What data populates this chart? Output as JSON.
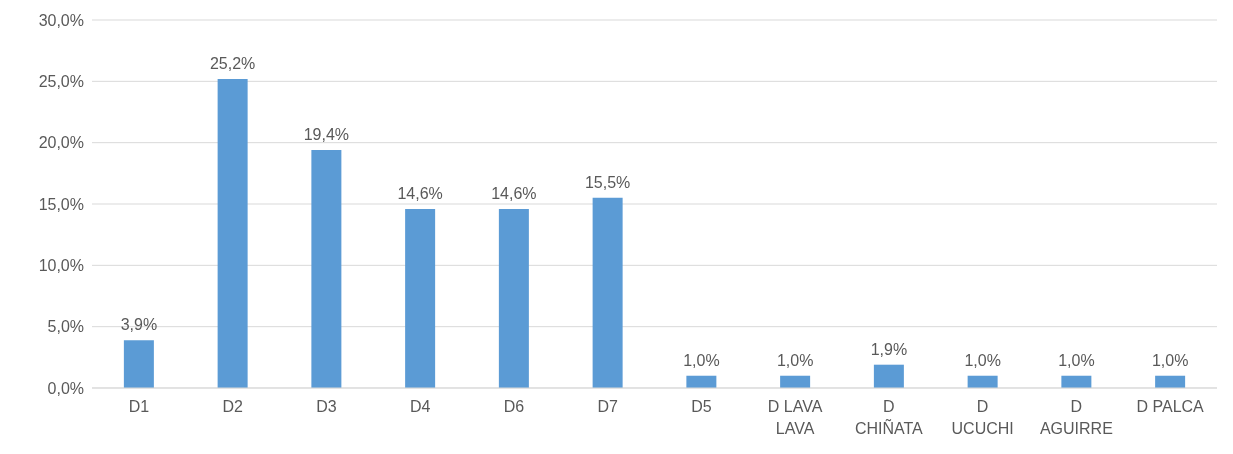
{
  "chart_data": {
    "type": "bar",
    "categories": [
      "D1",
      "D2",
      "D3",
      "D4",
      "D6",
      "D7",
      "D5",
      "D LAVA LAVA",
      "D CHIÑATA",
      "D UCUCHI",
      "D AGUIRRE",
      "D PALCA"
    ],
    "values": [
      3.9,
      25.2,
      19.4,
      14.6,
      14.6,
      15.5,
      1.0,
      1.0,
      1.9,
      1.0,
      1.0,
      1.0
    ],
    "value_labels": [
      "3,9%",
      "25,2%",
      "19,4%",
      "14,6%",
      "14,6%",
      "15,5%",
      "1,0%",
      "1,0%",
      "1,9%",
      "1,0%",
      "1,0%",
      "1,0%"
    ],
    "color": "#5b9bd5",
    "ylim": [
      0,
      30
    ],
    "yticks": [
      {
        "value": 0,
        "label": "0,0%"
      },
      {
        "value": 5,
        "label": "5,0%"
      },
      {
        "value": 10,
        "label": "10,0%"
      },
      {
        "value": 15,
        "label": "15,0%"
      },
      {
        "value": 20,
        "label": "20,0%"
      },
      {
        "value": 25,
        "label": "25,0%"
      },
      {
        "value": 30,
        "label": "30,0%"
      }
    ],
    "grid": "y",
    "legend": false
  }
}
